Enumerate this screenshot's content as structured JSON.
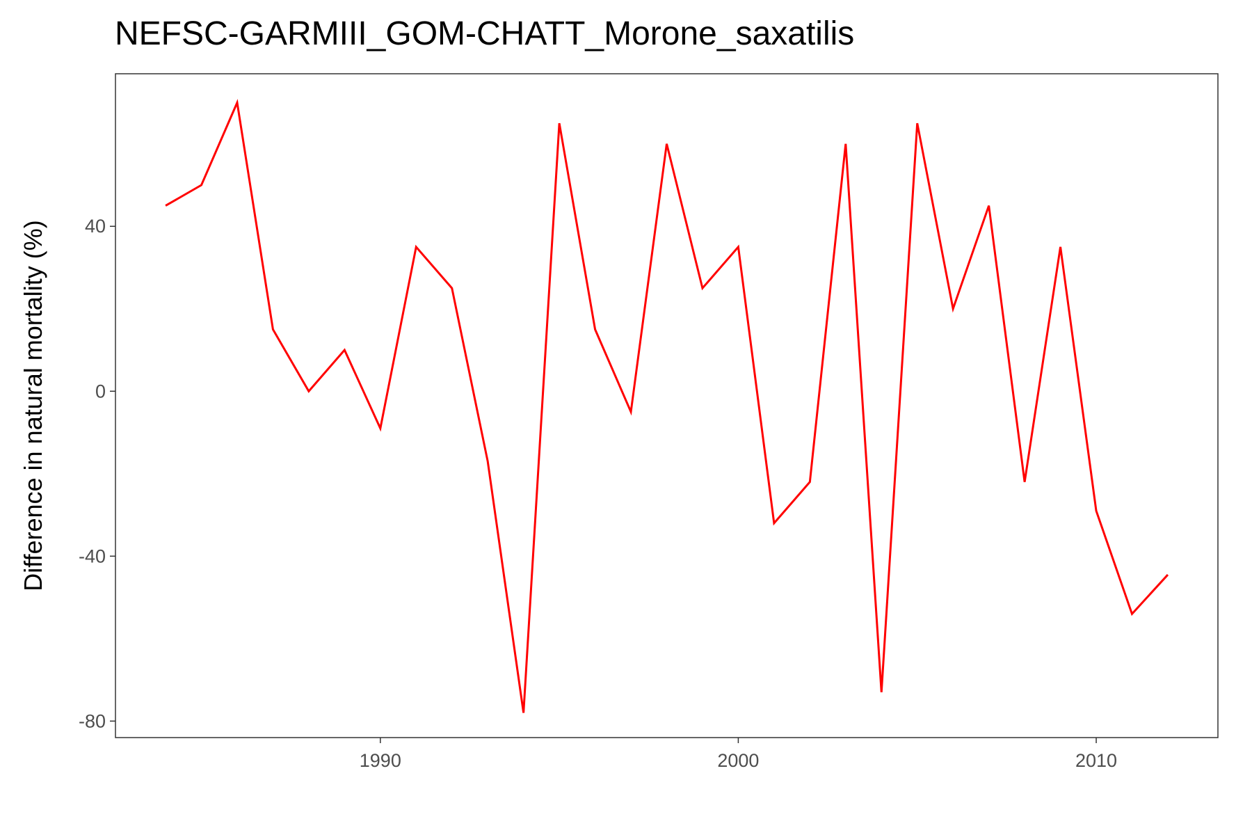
{
  "chart_data": {
    "type": "line",
    "title": "NEFSC-GARMIII_GOM-CHATT_Morone_saxatilis",
    "xlabel": "",
    "ylabel": "Difference in natural mortality (%)",
    "xlim": [
      1982.6,
      2013.4
    ],
    "ylim": [
      -84,
      77
    ],
    "x_ticks": [
      1990,
      2000,
      2010
    ],
    "y_ticks": [
      -80,
      -40,
      0,
      40
    ],
    "grid": false,
    "line_color": "#ff0000",
    "series": [
      {
        "x": [
          1984,
          1985,
          1986,
          1987,
          1988,
          1989,
          1990,
          1991,
          1992,
          1993,
          1994,
          1995,
          1996,
          1997,
          1998,
          1999,
          2000,
          2001,
          2002,
          2003,
          2004,
          2005,
          2006,
          2007,
          2008,
          2009,
          2010,
          2011,
          2012
        ],
        "values": [
          45,
          50,
          70,
          15,
          0,
          10,
          -9,
          35,
          25,
          -17,
          -78,
          65,
          15,
          -5,
          60,
          25,
          35,
          -32,
          -22,
          60,
          -73,
          65,
          20,
          45,
          -22,
          35,
          -29,
          -54,
          -44.5
        ]
      }
    ]
  }
}
